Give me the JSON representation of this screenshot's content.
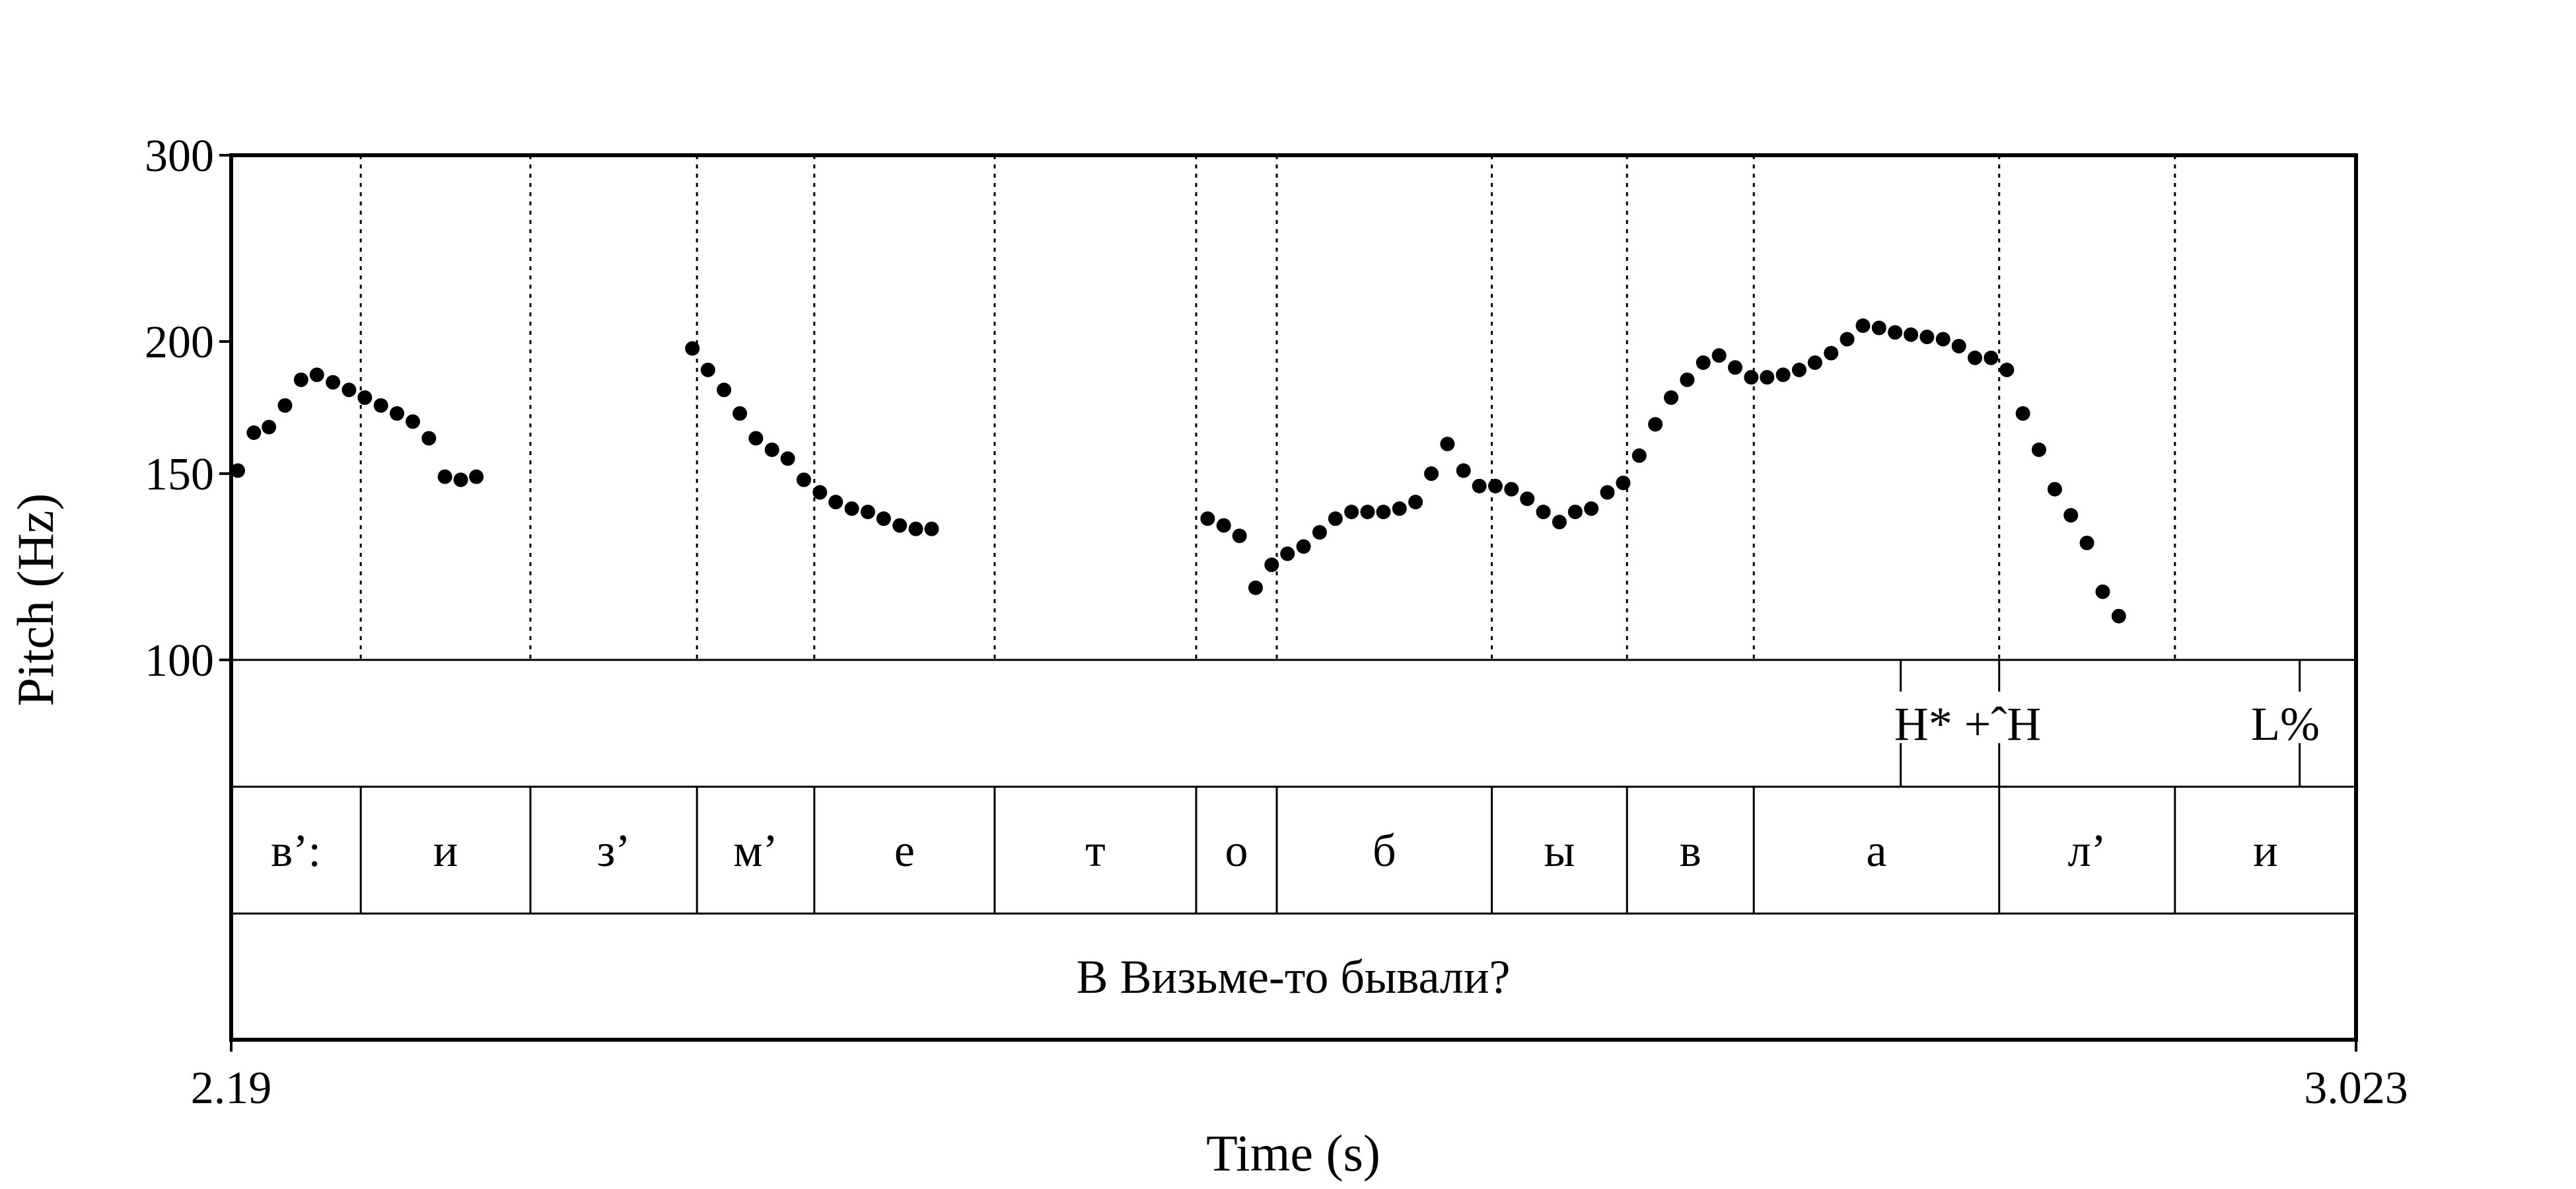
{
  "chart_data": {
    "type": "scatter",
    "ylabel": "Pitch (Hz)",
    "xlabel": "Time (s)",
    "xlim": [
      2.19,
      3.023
    ],
    "ylim": [
      100,
      300
    ],
    "yscale": "log",
    "x_tick_labels": [
      "2.19",
      "3.023"
    ],
    "y_ticks": [
      {
        "value": 300,
        "label": "300"
      },
      {
        "value": 200,
        "label": "200"
      },
      {
        "value": 150,
        "label": "150"
      },
      {
        "value": 100,
        "label": "100"
      }
    ],
    "boundaries": [
      2.2408,
      2.3073,
      2.3726,
      2.4186,
      2.4893,
      2.5683,
      2.5999,
      2.6842,
      2.7372,
      2.7869,
      2.8831,
      2.952
    ],
    "segments": [
      {
        "label": "в’:",
        "start": 2.19,
        "end": 2.2408
      },
      {
        "label": "и",
        "start": 2.2408,
        "end": 2.3073
      },
      {
        "label": "з’",
        "start": 2.3073,
        "end": 2.3726
      },
      {
        "label": "м’",
        "start": 2.3726,
        "end": 2.4186
      },
      {
        "label": "е",
        "start": 2.4186,
        "end": 2.4893
      },
      {
        "label": "т",
        "start": 2.4893,
        "end": 2.5683
      },
      {
        "label": "о",
        "start": 2.5683,
        "end": 2.5999
      },
      {
        "label": "б",
        "start": 2.5999,
        "end": 2.6842
      },
      {
        "label": "ы",
        "start": 2.6842,
        "end": 2.7372
      },
      {
        "label": "в",
        "start": 2.7372,
        "end": 2.7869
      },
      {
        "label": "а",
        "start": 2.7869,
        "end": 2.8831
      },
      {
        "label": "л’",
        "start": 2.8831,
        "end": 2.952
      },
      {
        "label": "и",
        "start": 2.952,
        "end": 3.023
      }
    ],
    "tones": [
      {
        "label": "H* +ˆH",
        "marks": [
          2.8445,
          2.8831
        ],
        "label_at": 2.8638
      },
      {
        "label": "L%",
        "marks": [
          3.0009
        ],
        "label_at": 3.0009
      }
    ],
    "sentence": "В Визьме-то бывали?",
    "points": [
      {
        "t": 2.1926,
        "f0": 151
      },
      {
        "t": 2.1989,
        "f0": 164
      },
      {
        "t": 2.2048,
        "f0": 166
      },
      {
        "t": 2.2111,
        "f0": 174
      },
      {
        "t": 2.2174,
        "f0": 184
      },
      {
        "t": 2.2236,
        "f0": 186
      },
      {
        "t": 2.2299,
        "f0": 183
      },
      {
        "t": 2.2362,
        "f0": 180
      },
      {
        "t": 2.2424,
        "f0": 177
      },
      {
        "t": 2.2487,
        "f0": 174
      },
      {
        "t": 2.255,
        "f0": 171
      },
      {
        "t": 2.2612,
        "f0": 168
      },
      {
        "t": 2.2675,
        "f0": 162
      },
      {
        "t": 2.2738,
        "f0": 149
      },
      {
        "t": 2.28,
        "f0": 148
      },
      {
        "t": 2.2861,
        "f0": 149
      },
      {
        "t": 2.3708,
        "f0": 197
      },
      {
        "t": 2.3769,
        "f0": 188
      },
      {
        "t": 2.3832,
        "f0": 180
      },
      {
        "t": 2.3894,
        "f0": 171
      },
      {
        "t": 2.3957,
        "f0": 162
      },
      {
        "t": 2.402,
        "f0": 158
      },
      {
        "t": 2.4082,
        "f0": 155
      },
      {
        "t": 2.4145,
        "f0": 148
      },
      {
        "t": 2.4208,
        "f0": 144
      },
      {
        "t": 2.427,
        "f0": 141
      },
      {
        "t": 2.4333,
        "f0": 139
      },
      {
        "t": 2.4396,
        "f0": 138
      },
      {
        "t": 2.4458,
        "f0": 136
      },
      {
        "t": 2.4521,
        "f0": 134
      },
      {
        "t": 2.4584,
        "f0": 133
      },
      {
        "t": 2.4646,
        "f0": 133
      },
      {
        "t": 2.5728,
        "f0": 136
      },
      {
        "t": 2.5791,
        "f0": 134
      },
      {
        "t": 2.5853,
        "f0": 131
      },
      {
        "t": 2.5916,
        "f0": 117
      },
      {
        "t": 2.5979,
        "f0": 123
      },
      {
        "t": 2.6041,
        "f0": 126
      },
      {
        "t": 2.6104,
        "f0": 128
      },
      {
        "t": 2.6167,
        "f0": 132
      },
      {
        "t": 2.6229,
        "f0": 136
      },
      {
        "t": 2.6292,
        "f0": 138
      },
      {
        "t": 2.6355,
        "f0": 138
      },
      {
        "t": 2.6417,
        "f0": 138
      },
      {
        "t": 2.648,
        "f0": 139
      },
      {
        "t": 2.6543,
        "f0": 141
      },
      {
        "t": 2.6605,
        "f0": 150
      },
      {
        "t": 2.6668,
        "f0": 160
      },
      {
        "t": 2.6731,
        "f0": 151
      },
      {
        "t": 2.6793,
        "f0": 146
      },
      {
        "t": 2.6856,
        "f0": 146
      },
      {
        "t": 2.6919,
        "f0": 145
      },
      {
        "t": 2.6981,
        "f0": 142
      },
      {
        "t": 2.7044,
        "f0": 138
      },
      {
        "t": 2.7107,
        "f0": 135
      },
      {
        "t": 2.7169,
        "f0": 138
      },
      {
        "t": 2.7232,
        "f0": 139
      },
      {
        "t": 2.7295,
        "f0": 144
      },
      {
        "t": 2.7357,
        "f0": 147
      },
      {
        "t": 2.742,
        "f0": 156
      },
      {
        "t": 2.7483,
        "f0": 167
      },
      {
        "t": 2.7545,
        "f0": 177
      },
      {
        "t": 2.7608,
        "f0": 184
      },
      {
        "t": 2.7671,
        "f0": 191
      },
      {
        "t": 2.7733,
        "f0": 194
      },
      {
        "t": 2.7796,
        "f0": 189
      },
      {
        "t": 2.7859,
        "f0": 185
      },
      {
        "t": 2.7921,
        "f0": 185
      },
      {
        "t": 2.7984,
        "f0": 186
      },
      {
        "t": 2.8047,
        "f0": 188
      },
      {
        "t": 2.8109,
        "f0": 191
      },
      {
        "t": 2.8172,
        "f0": 195
      },
      {
        "t": 2.8235,
        "f0": 201
      },
      {
        "t": 2.8297,
        "f0": 207
      },
      {
        "t": 2.836,
        "f0": 206
      },
      {
        "t": 2.8423,
        "f0": 204
      },
      {
        "t": 2.8485,
        "f0": 203
      },
      {
        "t": 2.8548,
        "f0": 202
      },
      {
        "t": 2.8611,
        "f0": 201
      },
      {
        "t": 2.8673,
        "f0": 198
      },
      {
        "t": 2.8736,
        "f0": 193
      },
      {
        "t": 2.8799,
        "f0": 193
      },
      {
        "t": 2.8861,
        "f0": 188
      },
      {
        "t": 2.8924,
        "f0": 171
      },
      {
        "t": 2.8987,
        "f0": 158
      },
      {
        "t": 2.9049,
        "f0": 145
      },
      {
        "t": 2.9112,
        "f0": 137
      },
      {
        "t": 2.9175,
        "f0": 129
      },
      {
        "t": 2.9237,
        "f0": 116
      },
      {
        "t": 2.93,
        "f0": 110
      }
    ]
  }
}
